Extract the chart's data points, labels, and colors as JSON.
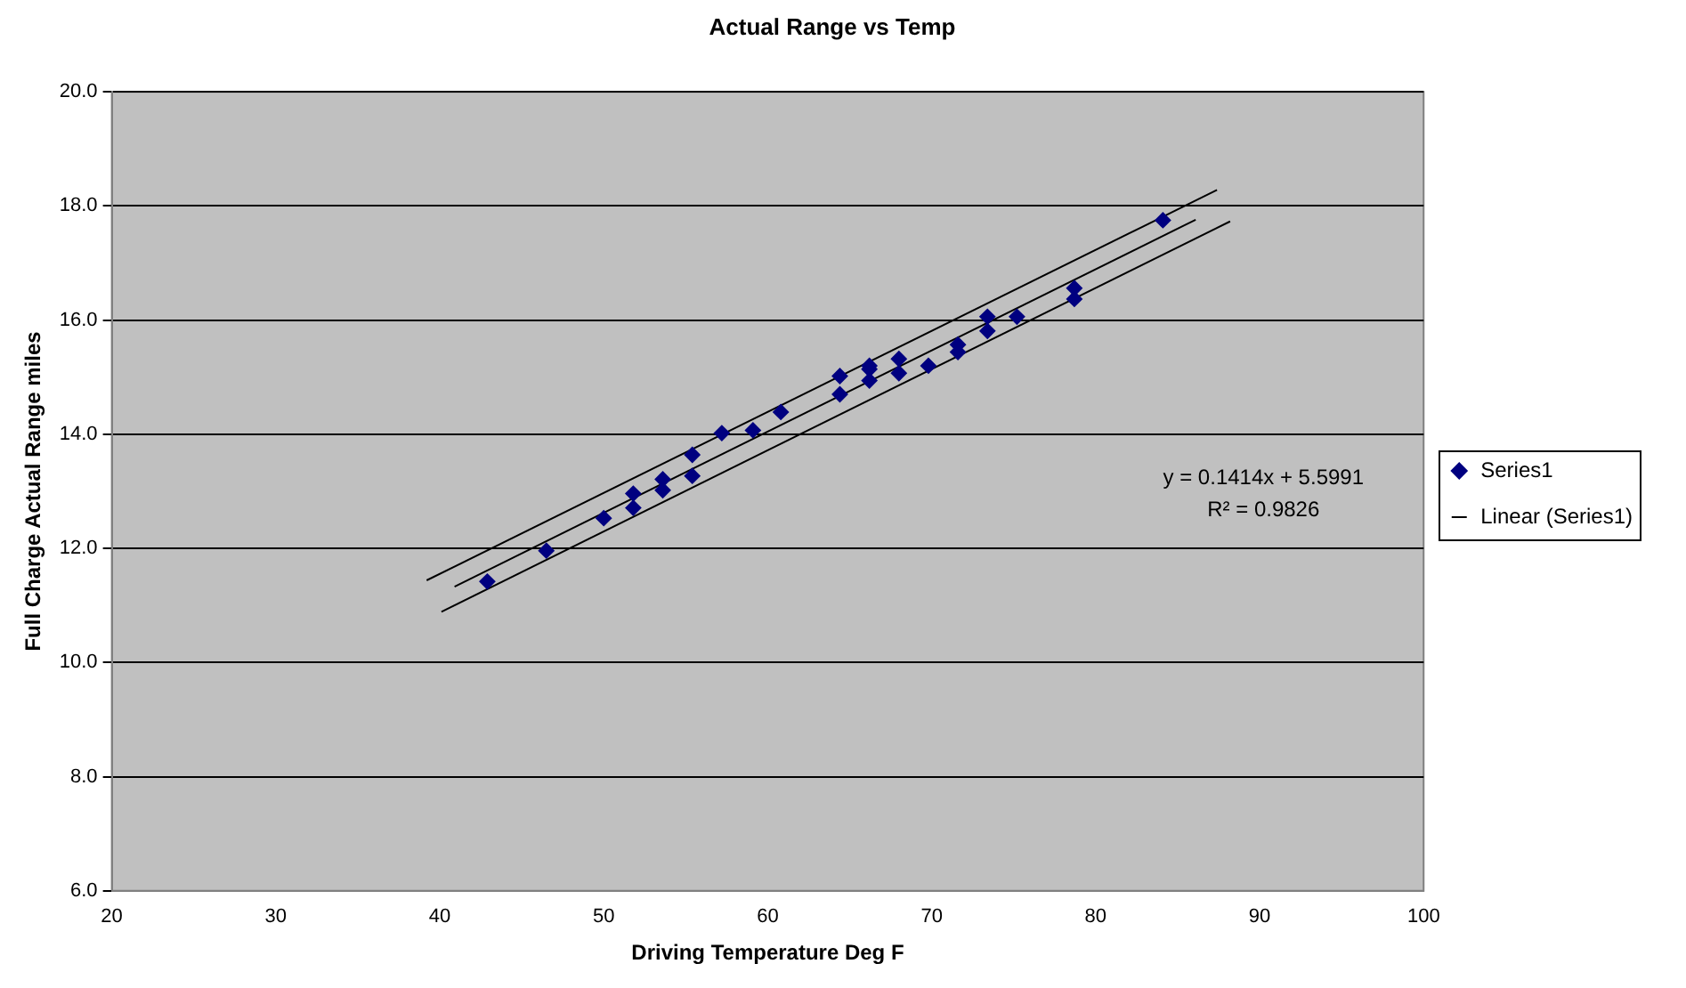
{
  "chart_data": {
    "type": "scatter",
    "title": "Actual Range vs Temp",
    "xlabel": "Driving Temperature Deg F",
    "ylabel": "Full Charge Actual Range miles",
    "xlim": [
      20,
      100
    ],
    "xticks": [
      20,
      30,
      40,
      50,
      60,
      70,
      80,
      90,
      100
    ],
    "ylim": [
      6,
      20
    ],
    "yticks": [
      {
        "value": 6,
        "label": "6.0"
      },
      {
        "value": 8,
        "label": "8.0"
      },
      {
        "value": 10,
        "label": "10.0"
      },
      {
        "value": 12,
        "label": "12.0"
      },
      {
        "value": 14,
        "label": "14.0"
      },
      {
        "value": 16,
        "label": "16.0"
      },
      {
        "value": 18,
        "label": "18.0"
      },
      {
        "value": 20,
        "label": "20.0"
      }
    ],
    "grid": "y",
    "legend": "right",
    "annotations": [
      "y = 0.1414x + 5.5991",
      "R² = 0.9826"
    ],
    "series": [
      {
        "name": "Series1",
        "type": "scatter",
        "marker": "diamond",
        "color": "#000080",
        "x": [
          42.9,
          46.5,
          50.0,
          51.8,
          51.8,
          53.6,
          53.6,
          55.4,
          55.4,
          57.2,
          59.1,
          60.8,
          64.4,
          64.4,
          66.2,
          66.2,
          66.2,
          68.0,
          68.0,
          69.8,
          71.6,
          71.6,
          73.4,
          73.4,
          75.2,
          78.7,
          78.7,
          84.1
        ],
        "values": [
          11.42,
          11.96,
          12.53,
          12.71,
          12.96,
          13.02,
          13.21,
          13.27,
          13.64,
          14.02,
          14.07,
          14.39,
          14.7,
          15.02,
          15.2,
          15.14,
          14.94,
          15.32,
          15.07,
          15.2,
          15.57,
          15.44,
          16.06,
          15.81,
          16.06,
          16.56,
          16.37,
          17.75
        ]
      },
      {
        "name": "Linear (Series1)",
        "type": "line",
        "marker": "none",
        "color": "#000000",
        "x": [
          40.9,
          86.1
        ],
        "values": [
          11.33,
          17.76
        ]
      },
      {
        "type": "line",
        "marker": "none",
        "color": "#000000",
        "x": [
          39.2,
          87.4
        ],
        "values": [
          11.44,
          18.28
        ]
      },
      {
        "type": "line",
        "marker": "none",
        "color": "#000000",
        "x": [
          40.1,
          88.2
        ],
        "values": [
          10.89,
          17.73
        ]
      }
    ]
  }
}
